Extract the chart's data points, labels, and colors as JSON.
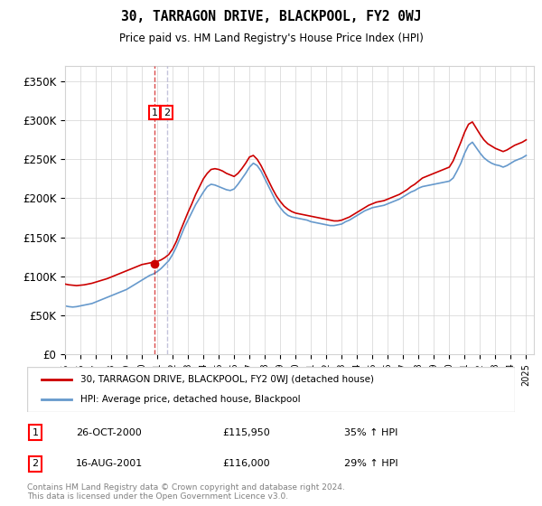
{
  "title": "30, TARRAGON DRIVE, BLACKPOOL, FY2 0WJ",
  "subtitle": "Price paid vs. HM Land Registry's House Price Index (HPI)",
  "ylabel_ticks": [
    "£0",
    "£50K",
    "£100K",
    "£150K",
    "£200K",
    "£250K",
    "£300K",
    "£350K"
  ],
  "ytick_values": [
    0,
    50000,
    100000,
    150000,
    200000,
    250000,
    300000,
    350000
  ],
  "ylim": [
    0,
    370000
  ],
  "xlim_start": 1995.5,
  "xlim_end": 2025.5,
  "red_color": "#cc0000",
  "blue_color": "#6699cc",
  "dashed_red": "#cc0000",
  "marker_color": "#cc0000",
  "legend_label_red": "30, TARRAGON DRIVE, BLACKPOOL, FY2 0WJ (detached house)",
  "legend_label_blue": "HPI: Average price, detached house, Blackpool",
  "sale1_label": "1",
  "sale1_date": "26-OCT-2000",
  "sale1_price": "£115,950",
  "sale1_hpi": "35% ↑ HPI",
  "sale1_year": 2000.82,
  "sale2_label": "2",
  "sale2_date": "16-AUG-2001",
  "sale2_price": "£116,000",
  "sale2_hpi": "29% ↑ HPI",
  "sale2_year": 2001.62,
  "footer": "Contains HM Land Registry data © Crown copyright and database right 2024.\nThis data is licensed under the Open Government Licence v3.0.",
  "hpi_years": [
    1995.0,
    1995.25,
    1995.5,
    1995.75,
    1996.0,
    1996.25,
    1996.5,
    1996.75,
    1997.0,
    1997.25,
    1997.5,
    1997.75,
    1998.0,
    1998.25,
    1998.5,
    1998.75,
    1999.0,
    1999.25,
    1999.5,
    1999.75,
    2000.0,
    2000.25,
    2000.5,
    2000.75,
    2001.0,
    2001.25,
    2001.5,
    2001.75,
    2002.0,
    2002.25,
    2002.5,
    2002.75,
    2003.0,
    2003.25,
    2003.5,
    2003.75,
    2004.0,
    2004.25,
    2004.5,
    2004.75,
    2005.0,
    2005.25,
    2005.5,
    2005.75,
    2006.0,
    2006.25,
    2006.5,
    2006.75,
    2007.0,
    2007.25,
    2007.5,
    2007.75,
    2008.0,
    2008.25,
    2008.5,
    2008.75,
    2009.0,
    2009.25,
    2009.5,
    2009.75,
    2010.0,
    2010.25,
    2010.5,
    2010.75,
    2011.0,
    2011.25,
    2011.5,
    2011.75,
    2012.0,
    2012.25,
    2012.5,
    2012.75,
    2013.0,
    2013.25,
    2013.5,
    2013.75,
    2014.0,
    2014.25,
    2014.5,
    2014.75,
    2015.0,
    2015.25,
    2015.5,
    2015.75,
    2016.0,
    2016.25,
    2016.5,
    2016.75,
    2017.0,
    2017.25,
    2017.5,
    2017.75,
    2018.0,
    2018.25,
    2018.5,
    2018.75,
    2019.0,
    2019.25,
    2019.5,
    2019.75,
    2020.0,
    2020.25,
    2020.5,
    2020.75,
    2021.0,
    2021.25,
    2021.5,
    2021.75,
    2022.0,
    2022.25,
    2022.5,
    2022.75,
    2023.0,
    2023.25,
    2023.5,
    2023.75,
    2024.0,
    2024.25,
    2024.5,
    2024.75,
    2025.0
  ],
  "hpi_values": [
    62000,
    61000,
    60500,
    61000,
    62000,
    63000,
    64000,
    65000,
    67000,
    69000,
    71000,
    73000,
    75000,
    77000,
    79000,
    81000,
    83000,
    86000,
    89000,
    92000,
    95000,
    98000,
    101000,
    103000,
    106000,
    110000,
    115000,
    120000,
    128000,
    138000,
    150000,
    162000,
    172000,
    182000,
    192000,
    200000,
    208000,
    215000,
    218000,
    217000,
    215000,
    213000,
    211000,
    210000,
    212000,
    218000,
    225000,
    232000,
    240000,
    245000,
    242000,
    235000,
    225000,
    215000,
    205000,
    195000,
    188000,
    182000,
    178000,
    176000,
    175000,
    174000,
    173000,
    172000,
    170000,
    169000,
    168000,
    167000,
    166000,
    165000,
    165000,
    166000,
    167000,
    170000,
    172000,
    175000,
    178000,
    181000,
    184000,
    186000,
    188000,
    189000,
    190000,
    191000,
    193000,
    195000,
    197000,
    199000,
    202000,
    205000,
    208000,
    210000,
    213000,
    215000,
    216000,
    217000,
    218000,
    219000,
    220000,
    221000,
    222000,
    226000,
    235000,
    245000,
    258000,
    268000,
    272000,
    265000,
    258000,
    252000,
    248000,
    245000,
    243000,
    242000,
    240000,
    242000,
    245000,
    248000,
    250000,
    252000,
    255000
  ],
  "red_years": [
    1995.0,
    1995.25,
    1995.5,
    1995.75,
    1996.0,
    1996.25,
    1996.5,
    1996.75,
    1997.0,
    1997.25,
    1997.5,
    1997.75,
    1998.0,
    1998.25,
    1998.5,
    1998.75,
    1999.0,
    1999.25,
    1999.5,
    1999.75,
    2000.0,
    2000.25,
    2000.5,
    2000.75,
    2001.0,
    2001.25,
    2001.5,
    2001.75,
    2002.0,
    2002.25,
    2002.5,
    2002.75,
    2003.0,
    2003.25,
    2003.5,
    2003.75,
    2004.0,
    2004.25,
    2004.5,
    2004.75,
    2005.0,
    2005.25,
    2005.5,
    2005.75,
    2006.0,
    2006.25,
    2006.5,
    2006.75,
    2007.0,
    2007.25,
    2007.5,
    2007.75,
    2008.0,
    2008.25,
    2008.5,
    2008.75,
    2009.0,
    2009.25,
    2009.5,
    2009.75,
    2010.0,
    2010.25,
    2010.5,
    2010.75,
    2011.0,
    2011.25,
    2011.5,
    2011.75,
    2012.0,
    2012.25,
    2012.5,
    2012.75,
    2013.0,
    2013.25,
    2013.5,
    2013.75,
    2014.0,
    2014.25,
    2014.5,
    2014.75,
    2015.0,
    2015.25,
    2015.5,
    2015.75,
    2016.0,
    2016.25,
    2016.5,
    2016.75,
    2017.0,
    2017.25,
    2017.5,
    2017.75,
    2018.0,
    2018.25,
    2018.5,
    2018.75,
    2019.0,
    2019.25,
    2019.5,
    2019.75,
    2020.0,
    2020.25,
    2020.5,
    2020.75,
    2021.0,
    2021.25,
    2021.5,
    2021.75,
    2022.0,
    2022.25,
    2022.5,
    2022.75,
    2023.0,
    2023.25,
    2023.5,
    2023.75,
    2024.0,
    2024.25,
    2024.5,
    2024.75,
    2025.0
  ],
  "red_values": [
    90000,
    89000,
    88500,
    88000,
    88500,
    89000,
    90000,
    91000,
    92500,
    94000,
    95500,
    97000,
    99000,
    101000,
    103000,
    105000,
    107000,
    109000,
    111000,
    113000,
    115000,
    116000,
    117000,
    118000,
    119000,
    121000,
    124000,
    128000,
    135000,
    145000,
    158000,
    170000,
    182000,
    193000,
    205000,
    215000,
    225000,
    232000,
    237000,
    238000,
    237000,
    235000,
    232000,
    230000,
    228000,
    232000,
    238000,
    245000,
    253000,
    255000,
    250000,
    242000,
    232000,
    222000,
    212000,
    203000,
    196000,
    190000,
    186000,
    183000,
    181000,
    180000,
    179000,
    178000,
    177000,
    176000,
    175000,
    174000,
    173000,
    172000,
    171000,
    171000,
    172000,
    174000,
    176000,
    179000,
    182000,
    185000,
    188000,
    191000,
    193000,
    195000,
    196000,
    197000,
    199000,
    201000,
    203000,
    205000,
    208000,
    211000,
    215000,
    218000,
    222000,
    226000,
    228000,
    230000,
    232000,
    234000,
    236000,
    238000,
    240000,
    248000,
    260000,
    272000,
    285000,
    295000,
    298000,
    290000,
    282000,
    275000,
    270000,
    267000,
    264000,
    262000,
    260000,
    262000,
    265000,
    268000,
    270000,
    272000,
    275000
  ]
}
